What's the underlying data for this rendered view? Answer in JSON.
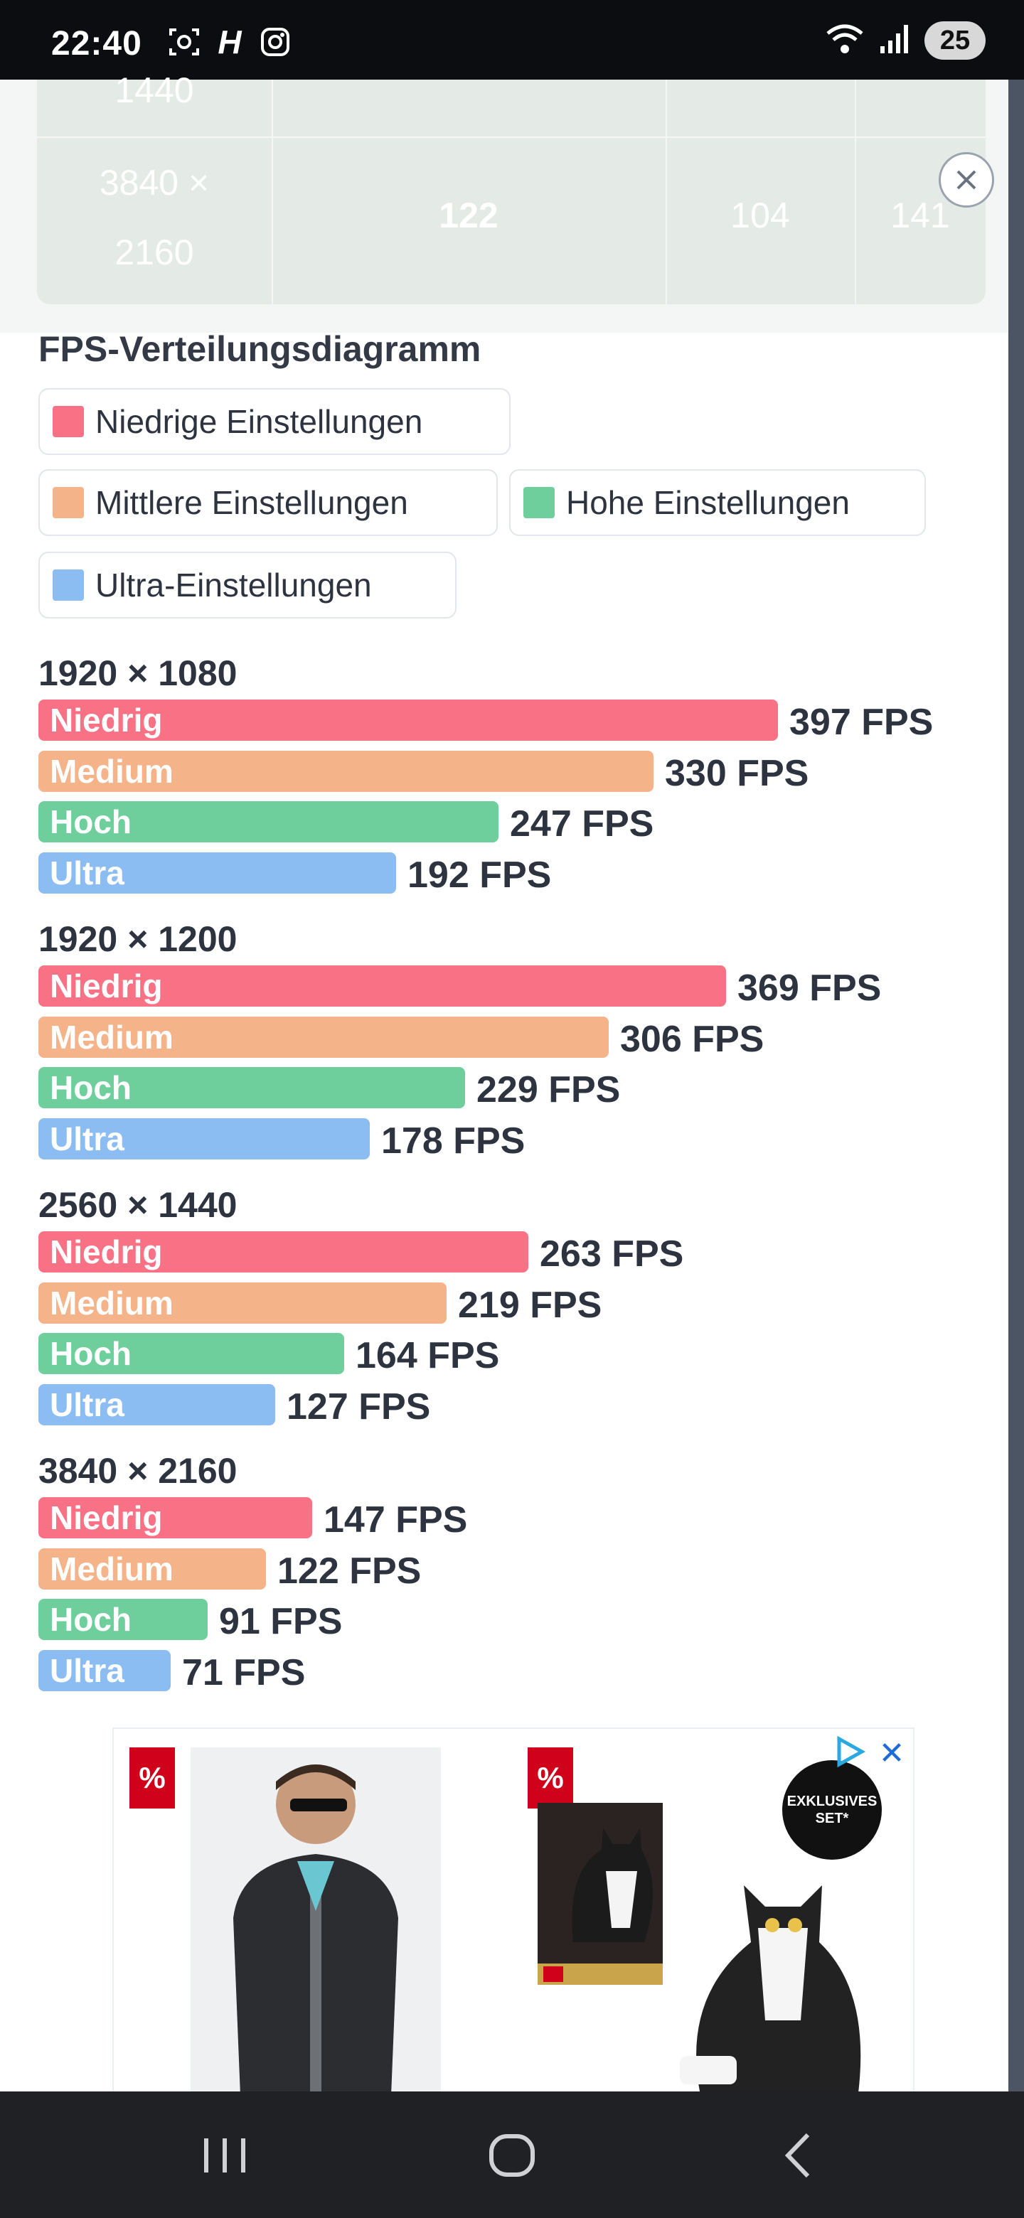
{
  "status_bar": {
    "time": "22:40",
    "left_icons": [
      "screenshot-icon",
      "h-app-icon",
      "instagram-icon"
    ],
    "h_letter": "H",
    "battery": "25"
  },
  "overlay_table": {
    "rows": [
      {
        "resolution": "1440",
        "values": [
          "",
          "",
          ""
        ]
      },
      {
        "resolution_line1": "3840 ×",
        "resolution_line2": "2160",
        "values": [
          "122",
          "104",
          "141"
        ]
      }
    ]
  },
  "chart_title": "FPS-Verteilungsdiagramm",
  "legend": [
    {
      "label": "Niedrige Einstellungen",
      "color": "#f87184"
    },
    {
      "label": "Mittlere Einstellungen",
      "color": "#f5b38a"
    },
    {
      "label": "Hohe Einstellungen",
      "color": "#6fcf9c"
    },
    {
      "label": "Ultra-Einstellungen",
      "color": "#8bbcf2"
    }
  ],
  "chart_data": {
    "type": "bar",
    "orientation": "horizontal",
    "title": "FPS-Verteilungsdiagramm",
    "unit": "FPS",
    "groups": [
      {
        "resolution": "1920 × 1080",
        "bars": [
          {
            "label": "Niedrig",
            "value": 397,
            "text": "397 FPS"
          },
          {
            "label": "Medium",
            "value": 330,
            "text": "330 FPS"
          },
          {
            "label": "Hoch",
            "value": 247,
            "text": "247 FPS"
          },
          {
            "label": "Ultra",
            "value": 192,
            "text": "192 FPS"
          }
        ]
      },
      {
        "resolution": "1920 × 1200",
        "bars": [
          {
            "label": "Niedrig",
            "value": 369,
            "text": "369 FPS"
          },
          {
            "label": "Medium",
            "value": 306,
            "text": "306 FPS"
          },
          {
            "label": "Hoch",
            "value": 229,
            "text": "229 FPS"
          },
          {
            "label": "Ultra",
            "value": 178,
            "text": "178 FPS"
          }
        ]
      },
      {
        "resolution": "2560 × 1440",
        "bars": [
          {
            "label": "Niedrig",
            "value": 263,
            "text": "263 FPS"
          },
          {
            "label": "Medium",
            "value": 219,
            "text": "219 FPS"
          },
          {
            "label": "Hoch",
            "value": 164,
            "text": "164 FPS"
          },
          {
            "label": "Ultra",
            "value": 127,
            "text": "127 FPS"
          }
        ]
      },
      {
        "resolution": "3840 × 2160",
        "bars": [
          {
            "label": "Niedrig",
            "value": 147,
            "text": "147 FPS"
          },
          {
            "label": "Medium",
            "value": 122,
            "text": "122 FPS"
          },
          {
            "label": "Hoch",
            "value": 91,
            "text": "91 FPS"
          },
          {
            "label": "Ultra",
            "value": 71,
            "text": "71 FPS"
          }
        ]
      }
    ],
    "colors": [
      "#f87184",
      "#f5b38a",
      "#6fcf9c",
      "#8bbcf2"
    ]
  },
  "ad": {
    "badge": "%",
    "close": "✕",
    "exclusive_line1": "EXKLUSIVES",
    "exclusive_line2": "SET*"
  }
}
